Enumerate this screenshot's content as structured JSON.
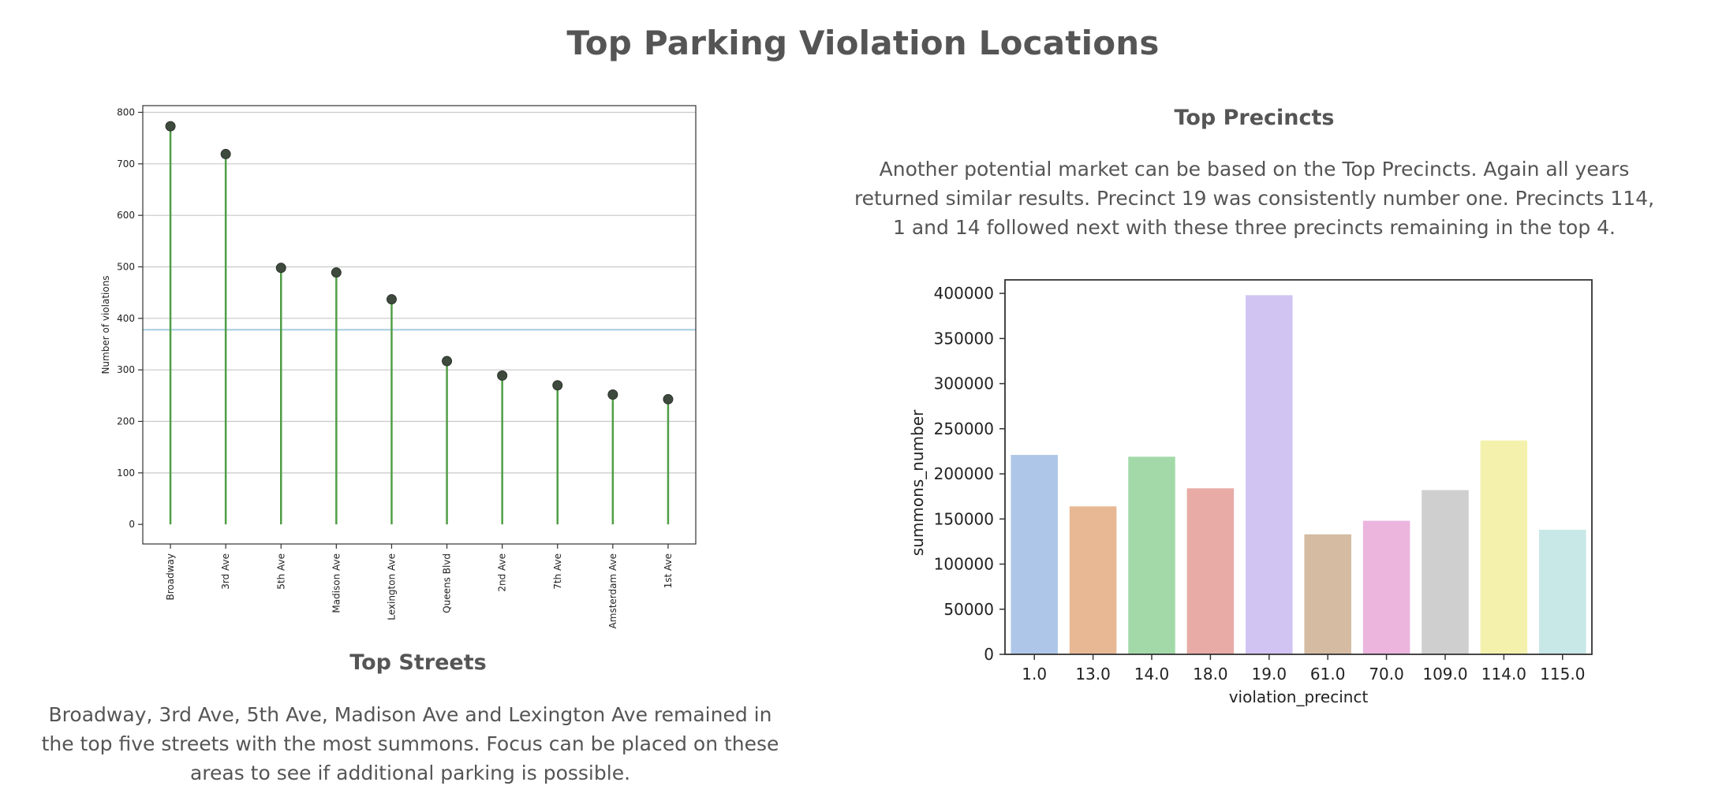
{
  "page": {
    "title": "Top Parking Violation Locations"
  },
  "streets": {
    "heading": "Top Streets",
    "text": "Broadway, 3rd Ave, 5th Ave, Madison Ave and Lexington Ave remained in the top five streets with the most summons. Focus can be placed on these areas to see if additional parking is possible."
  },
  "precincts": {
    "heading": "Top Precincts",
    "text": "Another potential market can be based on the Top Precincts. Again all years returned similar results. Precinct 19 was consistently number one. Precincts 114, 1 and 14 followed next with these three precincts remaining in the top 4."
  },
  "chart_data": [
    {
      "type": "lollipop",
      "categories": [
        "Broadway",
        "3rd Ave",
        "5th Ave",
        "Madison Ave",
        "Lexington Ave",
        "Queens Blvd",
        "2nd Ave",
        "7th Ave",
        "Amsterdam Ave",
        "1st Ave"
      ],
      "values": [
        773,
        719,
        498,
        489,
        437,
        317,
        289,
        270,
        252,
        243
      ],
      "reference_line": 378,
      "title": "",
      "xlabel": "",
      "ylabel": "Number of violations",
      "ylim": [
        -38,
        800
      ],
      "yticks": [
        0,
        100,
        200,
        300,
        400,
        500,
        600,
        700,
        800
      ],
      "grid": "horizontal",
      "colors": {
        "stem": "#4f9e45",
        "marker": "#3f4a3e",
        "reference": "#a7cce0",
        "grid": "#c8c8c8"
      }
    },
    {
      "type": "bar",
      "categories": [
        "1.0",
        "13.0",
        "14.0",
        "18.0",
        "19.0",
        "61.0",
        "70.0",
        "109.0",
        "114.0",
        "115.0"
      ],
      "values": [
        221000,
        164000,
        219000,
        184000,
        398000,
        133000,
        148000,
        182000,
        237000,
        138000
      ],
      "title": "",
      "xlabel": "violation_precinct",
      "ylabel": "summons_number",
      "ylim": [
        0,
        415000
      ],
      "yticks": [
        0,
        50000,
        100000,
        150000,
        200000,
        250000,
        300000,
        350000,
        400000
      ],
      "grid": "none",
      "colors": [
        "#aec7e8",
        "#e8b894",
        "#a3d9a9",
        "#e8aba6",
        "#d1c4f2",
        "#d4bba2",
        "#ebb5de",
        "#cfcfcf",
        "#f4f1ad",
        "#c7e8e7"
      ]
    }
  ]
}
